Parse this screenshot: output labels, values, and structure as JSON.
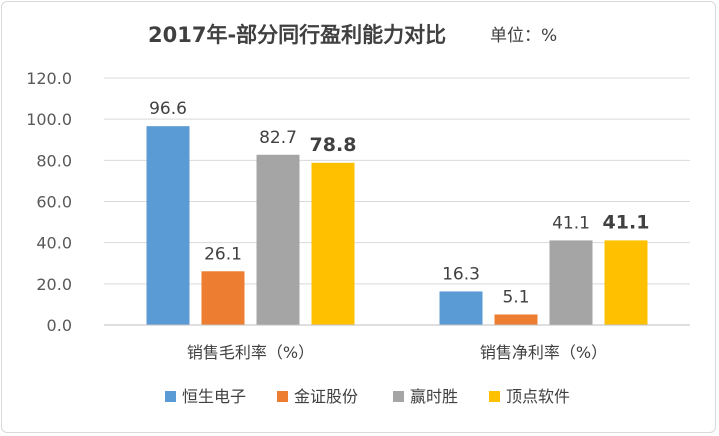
{
  "chart_data": {
    "type": "bar",
    "title": "2017年-部分同行盈利能力对比",
    "unit": "单位：%",
    "categories": [
      "销售毛利率（%）",
      "销售净利率（%）"
    ],
    "ylim": [
      0,
      120
    ],
    "yticks": [
      "0.0",
      "20.0",
      "40.0",
      "60.0",
      "80.0",
      "100.0",
      "120.0"
    ],
    "grid": true,
    "legend_position": "bottom",
    "series": [
      {
        "name": "恒生电子",
        "color": "#5b9bd5",
        "values": [
          96.6,
          16.3
        ],
        "labels": [
          "96.6",
          "16.3"
        ]
      },
      {
        "name": "金证股份",
        "color": "#ed7d31",
        "values": [
          26.1,
          5.1
        ],
        "labels": [
          "26.1",
          "5.1"
        ]
      },
      {
        "name": "赢时胜",
        "color": "#a5a5a5",
        "values": [
          82.7,
          41.1
        ],
        "labels": [
          "82.7",
          "41.1"
        ]
      },
      {
        "name": "顶点软件",
        "color": "#ffc000",
        "values": [
          78.8,
          41.1
        ],
        "labels": [
          "78.8",
          "41.1"
        ],
        "emphasis": true
      }
    ]
  }
}
